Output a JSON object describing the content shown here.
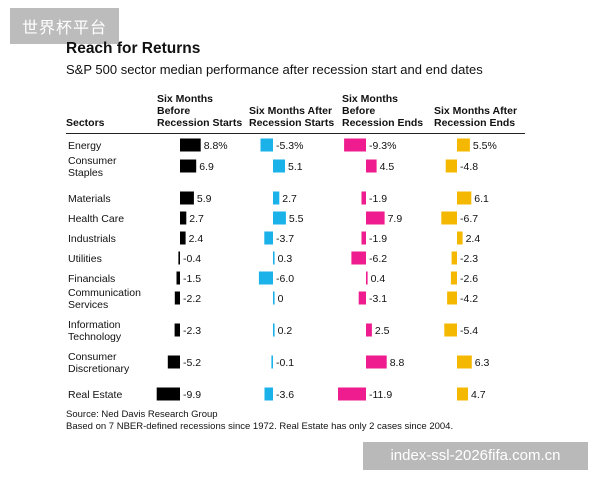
{
  "watermark_top": "世界杯平台",
  "watermark_bottom": "index-ssl-2026fifa.com.cn",
  "header": {
    "title": "Reach for Returns",
    "subtitle": "S&P 500 sector median performance after recession start and end dates"
  },
  "chart_data": {
    "type": "bar",
    "category_header": "Sectors",
    "categories": [
      [
        "Energy"
      ],
      [
        "Consumer",
        "Staples"
      ],
      [
        "Materials"
      ],
      [
        "Health Care"
      ],
      [
        "Industrials"
      ],
      [
        "Utilities"
      ],
      [
        "Financials"
      ],
      [
        "Communication",
        "Services"
      ],
      [
        "Information",
        "Technology"
      ],
      [
        "Consumer",
        "Discretionary"
      ],
      [
        "Real Estate"
      ]
    ],
    "series": [
      {
        "name": [
          "Six Months",
          "Before",
          "Recession Starts"
        ],
        "color": "#000000",
        "values": [
          8.8,
          6.9,
          5.9,
          2.7,
          2.4,
          -0.4,
          -1.5,
          -2.2,
          -2.3,
          -5.2,
          -9.9
        ],
        "labels": [
          "8.8%",
          "6.9",
          "5.9",
          "2.7",
          "2.4",
          "-0.4",
          "-1.5",
          "-2.2",
          "-2.3",
          "-5.2",
          "-9.9"
        ]
      },
      {
        "name": [
          "Six Months After",
          "Recession Starts"
        ],
        "color": "#1ab2e8",
        "values": [
          -5.3,
          5.1,
          2.7,
          5.5,
          -3.7,
          0.3,
          -6.0,
          0,
          0.2,
          -0.1,
          -3.6
        ],
        "labels": [
          "-5.3%",
          "5.1",
          "2.7",
          "5.5",
          "-3.7",
          "0.3",
          "-6.0",
          "0",
          "0.2",
          "-0.1",
          "-3.6"
        ]
      },
      {
        "name": [
          "Six Months",
          "Before",
          "Recession Ends"
        ],
        "color": "#ee1c8e",
        "values": [
          -9.3,
          4.5,
          -1.9,
          7.9,
          -1.9,
          -6.2,
          0.4,
          -3.1,
          2.5,
          8.8,
          -11.9
        ],
        "labels": [
          "-9.3%",
          "4.5",
          "-1.9",
          "7.9",
          "-1.9",
          "-6.2",
          "0.4",
          "-3.1",
          "2.5",
          "8.8",
          "-11.9"
        ]
      },
      {
        "name": [
          "Six Months After",
          "Recession Ends"
        ],
        "color": "#f5b800",
        "values": [
          5.5,
          -4.8,
          6.1,
          -6.7,
          2.4,
          -2.3,
          -2.6,
          -4.2,
          -5.4,
          6.3,
          4.7
        ],
        "labels": [
          "5.5%",
          "-4.8",
          "6.1",
          "-6.7",
          "2.4",
          "-2.3",
          "-2.6",
          "-4.2",
          "-5.4",
          "6.3",
          "4.7"
        ]
      }
    ],
    "grid": false,
    "legend": "none"
  },
  "footer": {
    "source": "Source: Ned Davis Research Group",
    "note": "Based on 7 NBER-defined recessions since 1972. Real Estate has only 2 cases since 2004."
  }
}
